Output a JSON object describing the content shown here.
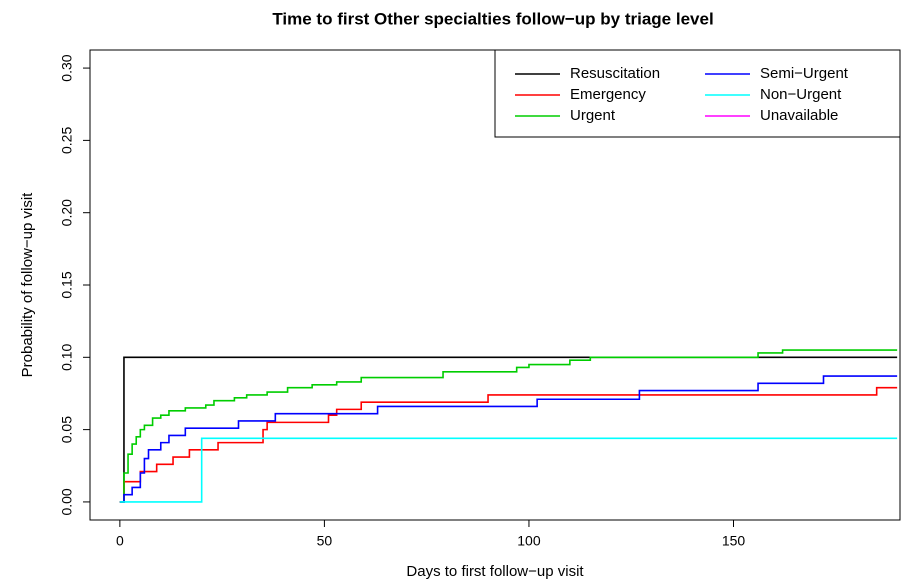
{
  "chart_data": {
    "type": "step",
    "title": "Time to first Other specialties follow−up by triage level",
    "x_label": "Days to first follow−up visit",
    "y_label": "Probability of follow−up visit",
    "xlim": [
      -7.3,
      190.7
    ],
    "ylim": [
      -0.0125,
      0.3125
    ],
    "xticks": [
      0,
      50,
      100,
      150
    ],
    "yticks": [
      {
        "value": 0,
        "label": "0.00"
      },
      {
        "value": 0.05,
        "label": "0.05"
      },
      {
        "value": 0.1,
        "label": "0.10"
      },
      {
        "value": 0.15,
        "label": "0.15"
      },
      {
        "value": 0.2,
        "label": "0.20"
      },
      {
        "value": 0.25,
        "label": "0.25"
      },
      {
        "value": 0.3,
        "label": "0.30"
      }
    ],
    "legend_position": "top-right",
    "series": [
      {
        "name": "Resuscitation",
        "color": "#000000",
        "x": [
          0,
          1,
          190
        ],
        "values": [
          0,
          0.1,
          0.1
        ]
      },
      {
        "name": "Emergency",
        "color": "#ff0000",
        "x": [
          0,
          1,
          5,
          9,
          13,
          17,
          24,
          35,
          36,
          51,
          53,
          59,
          90,
          185,
          190
        ],
        "values": [
          0,
          0.014,
          0.021,
          0.026,
          0.031,
          0.036,
          0.041,
          0.05,
          0.055,
          0.06,
          0.064,
          0.069,
          0.074,
          0.079,
          0.079
        ]
      },
      {
        "name": "Urgent",
        "color": "#00cd00",
        "x": [
          0,
          1,
          2,
          3,
          4,
          5,
          6,
          8,
          10,
          12,
          16,
          21,
          23,
          28,
          31,
          36,
          41,
          47,
          53,
          59,
          79,
          97,
          100,
          110,
          115,
          156,
          162,
          190
        ],
        "values": [
          0,
          0.02,
          0.033,
          0.04,
          0.045,
          0.05,
          0.053,
          0.058,
          0.06,
          0.063,
          0.065,
          0.067,
          0.07,
          0.072,
          0.074,
          0.076,
          0.079,
          0.081,
          0.083,
          0.086,
          0.09,
          0.093,
          0.095,
          0.098,
          0.1,
          0.103,
          0.105,
          0.105
        ]
      },
      {
        "name": "Semi−Urgent",
        "color": "#0000ff",
        "x": [
          0,
          1,
          3,
          5,
          6,
          7,
          10,
          12,
          16,
          29,
          38,
          63,
          102,
          127,
          156,
          172,
          190
        ],
        "values": [
          0,
          0.005,
          0.01,
          0.02,
          0.03,
          0.036,
          0.041,
          0.046,
          0.051,
          0.056,
          0.061,
          0.066,
          0.071,
          0.077,
          0.082,
          0.087,
          0.087
        ]
      },
      {
        "name": "Non−Urgent",
        "color": "#00ffff",
        "x": [
          0,
          20,
          190
        ],
        "values": [
          0,
          0.044,
          0.044
        ]
      },
      {
        "name": "Unavailable",
        "color": "#ff00ff",
        "x": [],
        "values": []
      }
    ]
  }
}
